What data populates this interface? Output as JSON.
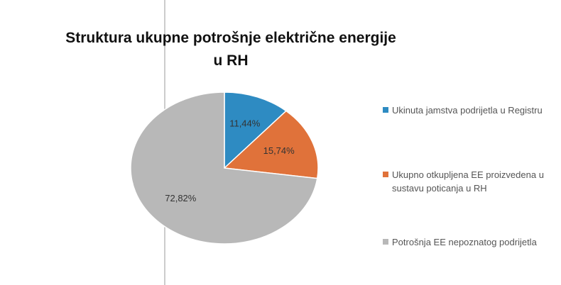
{
  "chart_data": {
    "type": "pie",
    "title": "Struktura ukupne potrošnje električne energije u RH",
    "categories": [
      "Ukinuta jamstva podrijetla u Registru",
      "Ukupno otkupljena EE proizvedena u sustavu poticanja u RH",
      "Potrošnja EE nepoznatog podrijetla"
    ],
    "values": [
      11.44,
      15.74,
      72.82
    ],
    "value_labels": [
      "11,44%",
      "15,74%",
      "72,82%"
    ],
    "colors": [
      "#2e8bc2",
      "#e0723a",
      "#b8b8b8"
    ],
    "legend": "right"
  }
}
